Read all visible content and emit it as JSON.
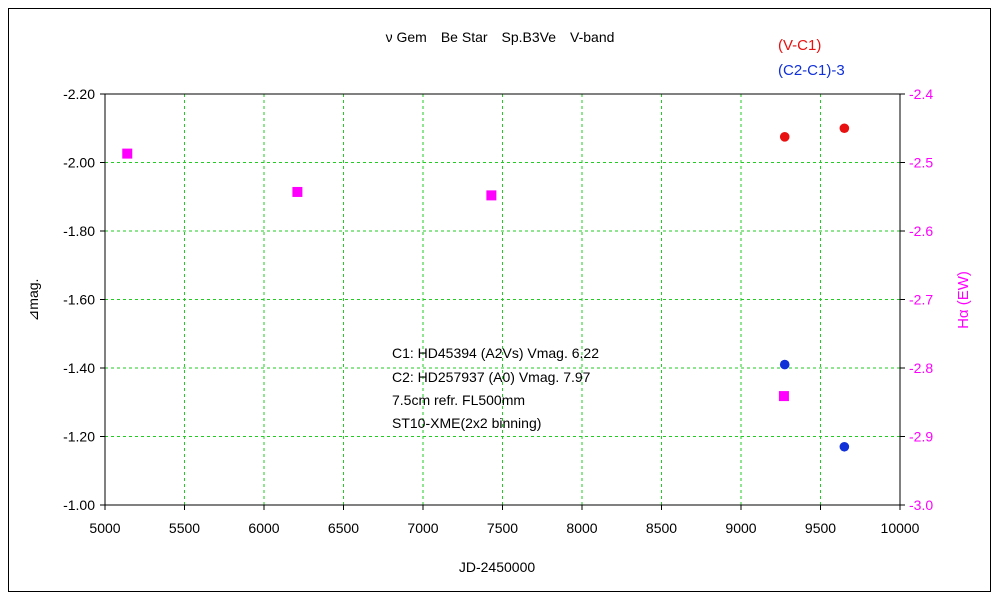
{
  "chart_data": {
    "type": "scatter",
    "title": "ν Gem　Be Star　Sp.B3Ve　V-band",
    "xlabel": "JD-2450000",
    "ylabel_left": "⊿mag.",
    "ylabel_right": "Hα (EW)",
    "xlim": [
      5000,
      10000
    ],
    "ylim_left": [
      -1.0,
      -2.2
    ],
    "ylim_right": [
      -3.0,
      -2.4
    ],
    "x_ticks": [
      "5000",
      "5500",
      "6000",
      "6500",
      "7000",
      "7500",
      "8000",
      "8500",
      "9000",
      "9500",
      "10000"
    ],
    "y_ticks_left": [
      "-2.20",
      "-2.00",
      "-1.80",
      "-1.60",
      "-1.40",
      "-1.20",
      "-1.00"
    ],
    "y_ticks_right": [
      "-2.4",
      "-2.5",
      "-2.6",
      "-2.7",
      "-2.8",
      "-2.9",
      "-3.0"
    ],
    "grid": true,
    "legend_position": "top-right",
    "series": [
      {
        "name": "(V-C1)",
        "axis": "left",
        "marker": "circle",
        "color": "#e81010",
        "x": [
          9275,
          9650
        ],
        "y": [
          -2.075,
          -2.1
        ]
      },
      {
        "name": "(C2-C1)-3",
        "axis": "left",
        "marker": "circle",
        "color": "#1030d8",
        "x": [
          9275,
          9650
        ],
        "y": [
          -1.41,
          -1.17
        ]
      },
      {
        "name": "",
        "axis": "right",
        "marker": "square",
        "color": "#ff00ff",
        "x": [
          5140,
          6210,
          7430,
          9270
        ],
        "y": [
          -2.487,
          -2.543,
          -2.548,
          -2.841
        ]
      }
    ],
    "annotations": [
      "C1: HD45394 (A2Vs) Vmag. 6.22",
      "C2: HD257937 (A0) Vmag. 7.97",
      "7.5cm refr. FL500mm",
      "ST10-XME(2x2 binning)"
    ]
  }
}
